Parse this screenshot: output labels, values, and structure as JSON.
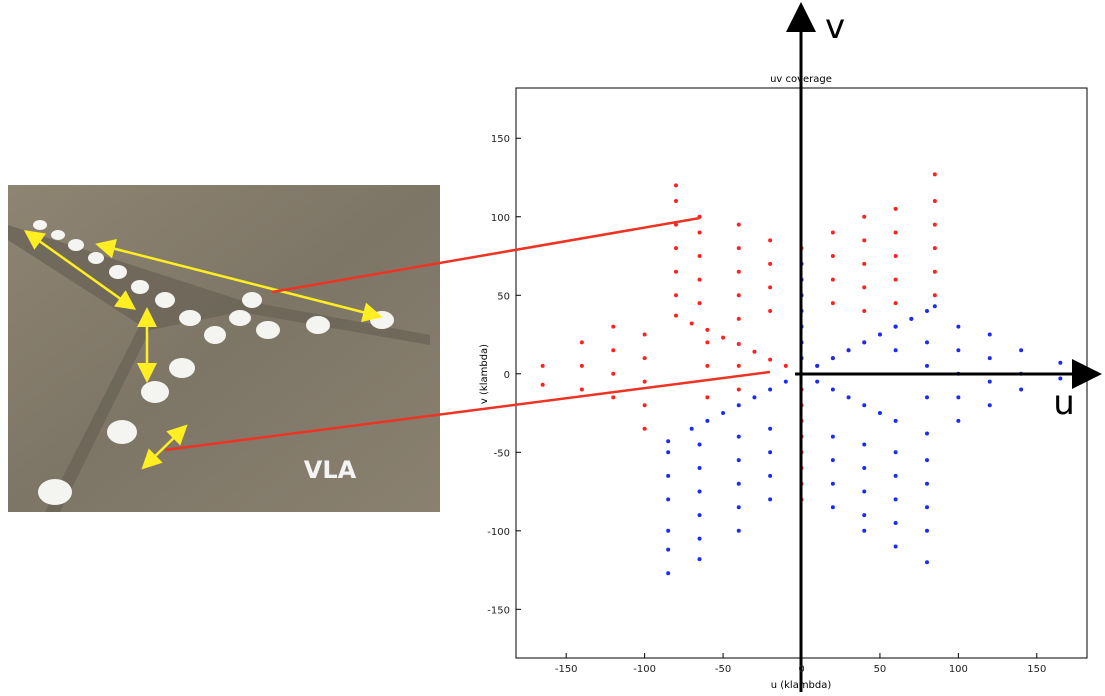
{
  "chart_data": {
    "type": "scatter",
    "title": "uv coverage",
    "x_label": "u (klambda)",
    "y_label": "v (klambda)",
    "axis_u": "u",
    "axis_v": "v",
    "photo_label": "VLA",
    "xlim": [
      -182,
      182
    ],
    "ylim": [
      -181,
      182
    ],
    "xticks": [
      -150,
      -100,
      -50,
      0,
      50,
      100,
      150
    ],
    "yticks": [
      -150,
      -100,
      -50,
      0,
      50,
      100,
      150
    ],
    "series": [
      {
        "color": "#ff2020",
        "x": [
          -10,
          -20,
          -30,
          -40,
          -50,
          -60,
          -70,
          -80,
          10,
          20,
          30,
          40,
          50,
          60,
          70,
          0,
          0,
          0,
          0,
          0,
          0,
          0,
          0,
          0,
          0,
          0,
          0,
          0,
          0,
          0,
          0,
          -80,
          -80,
          -80,
          -80,
          -80,
          -80,
          -65,
          -65,
          -65,
          -65,
          -65,
          -40,
          -40,
          -40,
          -40,
          -40,
          -20,
          -20,
          -20,
          -20,
          20,
          20,
          20,
          20,
          40,
          40,
          40,
          40,
          40,
          60,
          60,
          60,
          60,
          60,
          85,
          85,
          85,
          85,
          85,
          85,
          -100,
          -100,
          -100,
          -100,
          -100,
          -120,
          -120,
          -120,
          -120,
          -140,
          -140,
          -140,
          -165,
          -165,
          -60,
          -60,
          -60,
          -40,
          -40
        ],
        "values": [
          5,
          9,
          14,
          19,
          23,
          28,
          32,
          37,
          5,
          10,
          15,
          20,
          25,
          30,
          35,
          10,
          20,
          30,
          40,
          50,
          60,
          70,
          80,
          -10,
          -20,
          -30,
          -40,
          -50,
          -60,
          -70,
          -80,
          50,
          65,
          80,
          95,
          110,
          120,
          45,
          60,
          75,
          90,
          100,
          35,
          50,
          65,
          80,
          95,
          40,
          55,
          70,
          85,
          45,
          60,
          75,
          90,
          40,
          55,
          70,
          85,
          100,
          45,
          60,
          75,
          90,
          105,
          50,
          65,
          80,
          95,
          110,
          127,
          25,
          10,
          -5,
          -20,
          -35,
          30,
          15,
          0,
          -15,
          20,
          5,
          -10,
          5,
          -7,
          20,
          5,
          -15,
          5,
          -10
        ]
      },
      {
        "color": "#1a2cf0",
        "x": [
          10,
          20,
          30,
          40,
          50,
          60,
          70,
          85,
          100,
          100,
          100,
          100,
          100,
          120,
          120,
          120,
          120,
          140,
          140,
          140,
          165,
          165,
          10,
          20,
          30,
          40,
          50,
          60,
          80,
          -85,
          -85,
          -85,
          -85,
          -85,
          -85,
          -65,
          -65,
          -65,
          -65,
          -65,
          -65,
          -40,
          -40,
          -40,
          -40,
          -40,
          -20,
          -20,
          -20,
          -20,
          20,
          20,
          20,
          20,
          40,
          40,
          40,
          40,
          40,
          60,
          60,
          60,
          60,
          60,
          80,
          80,
          80,
          80,
          80,
          -10,
          -20,
          -30,
          -40,
          -50,
          -60,
          -70,
          -85,
          0,
          0,
          0,
          0,
          0,
          0,
          0,
          60,
          60,
          80,
          80,
          80,
          80
        ],
        "values": [
          5,
          10,
          15,
          20,
          25,
          30,
          35,
          43,
          30,
          15,
          0,
          -15,
          -30,
          25,
          10,
          -5,
          -20,
          15,
          0,
          -10,
          7,
          -3,
          -5,
          -10,
          -15,
          -20,
          -25,
          -30,
          -38,
          -50,
          -65,
          -80,
          -100,
          -112,
          -127,
          -45,
          -60,
          -75,
          -90,
          -105,
          -118,
          -40,
          -55,
          -70,
          -85,
          -100,
          -35,
          -50,
          -65,
          -80,
          -40,
          -55,
          -70,
          -85,
          -45,
          -60,
          -75,
          -90,
          -100,
          -50,
          -65,
          -80,
          -95,
          -110,
          -55,
          -70,
          -85,
          -100,
          -120,
          -5,
          -10,
          -15,
          -20,
          -25,
          -30,
          -35,
          -43,
          10,
          20,
          30,
          40,
          50,
          60,
          70,
          15,
          30,
          40,
          20,
          5,
          -15
        ]
      }
    ]
  }
}
